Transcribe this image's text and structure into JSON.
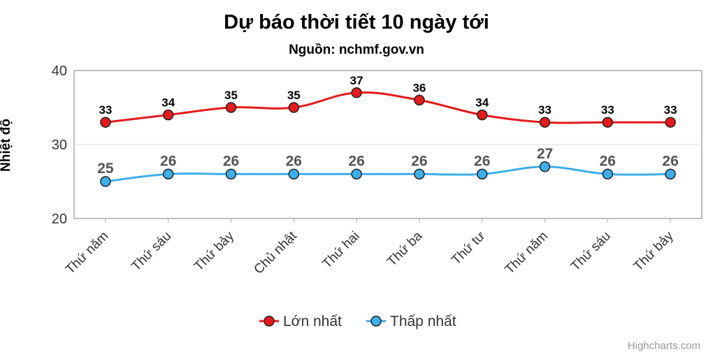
{
  "chart_data": {
    "type": "line",
    "title": "Dự báo thời tiết 10 ngày tới",
    "subtitle": "Nguồn: nchmf.gov.vn",
    "ylabel": "Nhiệt độ",
    "xlabel": "",
    "ylim": [
      20,
      40
    ],
    "yticks": [
      20,
      30,
      40
    ],
    "grid": true,
    "legend_position": "bottom",
    "categories": [
      "Thứ năm",
      "Thứ sáu",
      "Thứ bảy",
      "Chủ nhật",
      "Thứ hai",
      "Thứ ba",
      "Thứ tư",
      "Thứ năm",
      "Thứ sáu",
      "Thứ bảy"
    ],
    "series": [
      {
        "name": "Lớn nhất",
        "color": "#e41a1c",
        "values": [
          33,
          34,
          35,
          35,
          37,
          36,
          34,
          33,
          33,
          33
        ]
      },
      {
        "name": "Thấp nhất",
        "color": "#3daee9",
        "values": [
          25,
          26,
          26,
          26,
          26,
          26,
          26,
          27,
          26,
          26
        ]
      }
    ],
    "credits": "Highcharts.com"
  }
}
